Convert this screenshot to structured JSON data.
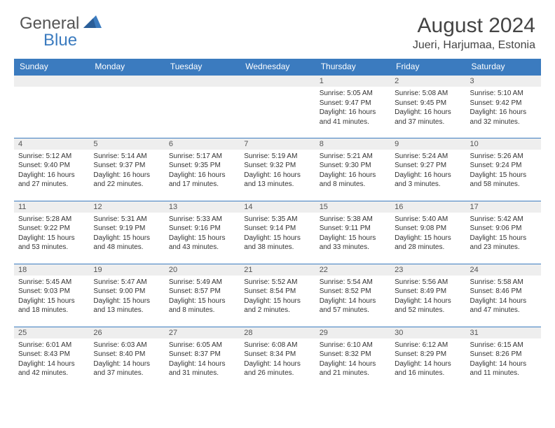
{
  "logo": {
    "text1": "General",
    "text2": "Blue"
  },
  "title": "August 2024",
  "location": "Jueri, Harjumaa, Estonia",
  "colors": {
    "header_bg": "#3b7bbf",
    "header_text": "#ffffff",
    "day_num_bg": "#eeeeee",
    "border": "#3b7bbf",
    "text": "#333333",
    "background": "#ffffff"
  },
  "weekdays": [
    "Sunday",
    "Monday",
    "Tuesday",
    "Wednesday",
    "Thursday",
    "Friday",
    "Saturday"
  ],
  "weeks": [
    [
      null,
      null,
      null,
      null,
      {
        "day": "1",
        "sunrise": "5:05 AM",
        "sunset": "9:47 PM",
        "daylight": "16 hours and 41 minutes."
      },
      {
        "day": "2",
        "sunrise": "5:08 AM",
        "sunset": "9:45 PM",
        "daylight": "16 hours and 37 minutes."
      },
      {
        "day": "3",
        "sunrise": "5:10 AM",
        "sunset": "9:42 PM",
        "daylight": "16 hours and 32 minutes."
      }
    ],
    [
      {
        "day": "4",
        "sunrise": "5:12 AM",
        "sunset": "9:40 PM",
        "daylight": "16 hours and 27 minutes."
      },
      {
        "day": "5",
        "sunrise": "5:14 AM",
        "sunset": "9:37 PM",
        "daylight": "16 hours and 22 minutes."
      },
      {
        "day": "6",
        "sunrise": "5:17 AM",
        "sunset": "9:35 PM",
        "daylight": "16 hours and 17 minutes."
      },
      {
        "day": "7",
        "sunrise": "5:19 AM",
        "sunset": "9:32 PM",
        "daylight": "16 hours and 13 minutes."
      },
      {
        "day": "8",
        "sunrise": "5:21 AM",
        "sunset": "9:30 PM",
        "daylight": "16 hours and 8 minutes."
      },
      {
        "day": "9",
        "sunrise": "5:24 AM",
        "sunset": "9:27 PM",
        "daylight": "16 hours and 3 minutes."
      },
      {
        "day": "10",
        "sunrise": "5:26 AM",
        "sunset": "9:24 PM",
        "daylight": "15 hours and 58 minutes."
      }
    ],
    [
      {
        "day": "11",
        "sunrise": "5:28 AM",
        "sunset": "9:22 PM",
        "daylight": "15 hours and 53 minutes."
      },
      {
        "day": "12",
        "sunrise": "5:31 AM",
        "sunset": "9:19 PM",
        "daylight": "15 hours and 48 minutes."
      },
      {
        "day": "13",
        "sunrise": "5:33 AM",
        "sunset": "9:16 PM",
        "daylight": "15 hours and 43 minutes."
      },
      {
        "day": "14",
        "sunrise": "5:35 AM",
        "sunset": "9:14 PM",
        "daylight": "15 hours and 38 minutes."
      },
      {
        "day": "15",
        "sunrise": "5:38 AM",
        "sunset": "9:11 PM",
        "daylight": "15 hours and 33 minutes."
      },
      {
        "day": "16",
        "sunrise": "5:40 AM",
        "sunset": "9:08 PM",
        "daylight": "15 hours and 28 minutes."
      },
      {
        "day": "17",
        "sunrise": "5:42 AM",
        "sunset": "9:06 PM",
        "daylight": "15 hours and 23 minutes."
      }
    ],
    [
      {
        "day": "18",
        "sunrise": "5:45 AM",
        "sunset": "9:03 PM",
        "daylight": "15 hours and 18 minutes."
      },
      {
        "day": "19",
        "sunrise": "5:47 AM",
        "sunset": "9:00 PM",
        "daylight": "15 hours and 13 minutes."
      },
      {
        "day": "20",
        "sunrise": "5:49 AM",
        "sunset": "8:57 PM",
        "daylight": "15 hours and 8 minutes."
      },
      {
        "day": "21",
        "sunrise": "5:52 AM",
        "sunset": "8:54 PM",
        "daylight": "15 hours and 2 minutes."
      },
      {
        "day": "22",
        "sunrise": "5:54 AM",
        "sunset": "8:52 PM",
        "daylight": "14 hours and 57 minutes."
      },
      {
        "day": "23",
        "sunrise": "5:56 AM",
        "sunset": "8:49 PM",
        "daylight": "14 hours and 52 minutes."
      },
      {
        "day": "24",
        "sunrise": "5:58 AM",
        "sunset": "8:46 PM",
        "daylight": "14 hours and 47 minutes."
      }
    ],
    [
      {
        "day": "25",
        "sunrise": "6:01 AM",
        "sunset": "8:43 PM",
        "daylight": "14 hours and 42 minutes."
      },
      {
        "day": "26",
        "sunrise": "6:03 AM",
        "sunset": "8:40 PM",
        "daylight": "14 hours and 37 minutes."
      },
      {
        "day": "27",
        "sunrise": "6:05 AM",
        "sunset": "8:37 PM",
        "daylight": "14 hours and 31 minutes."
      },
      {
        "day": "28",
        "sunrise": "6:08 AM",
        "sunset": "8:34 PM",
        "daylight": "14 hours and 26 minutes."
      },
      {
        "day": "29",
        "sunrise": "6:10 AM",
        "sunset": "8:32 PM",
        "daylight": "14 hours and 21 minutes."
      },
      {
        "day": "30",
        "sunrise": "6:12 AM",
        "sunset": "8:29 PM",
        "daylight": "14 hours and 16 minutes."
      },
      {
        "day": "31",
        "sunrise": "6:15 AM",
        "sunset": "8:26 PM",
        "daylight": "14 hours and 11 minutes."
      }
    ]
  ]
}
